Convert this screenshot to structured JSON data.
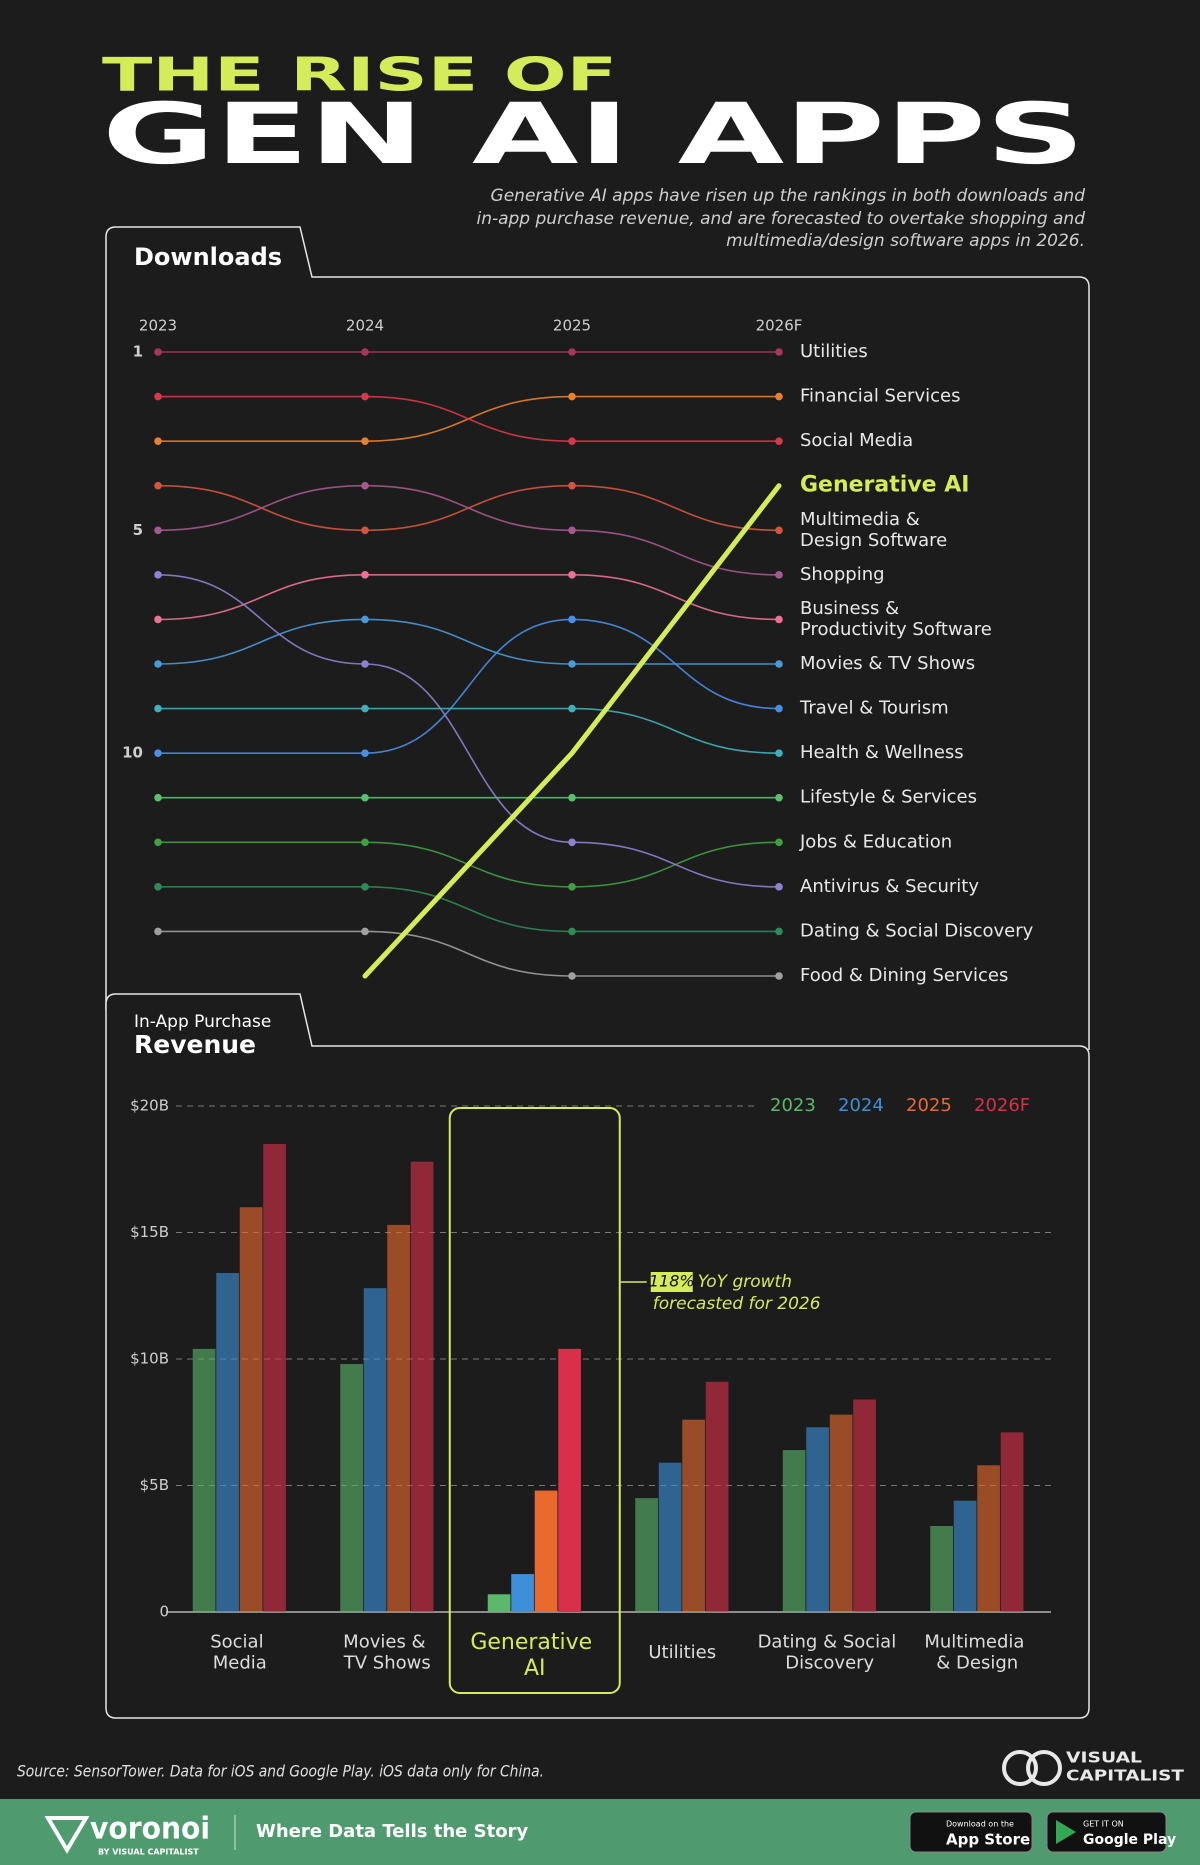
{
  "header": {
    "kicker": "THE RISE OF",
    "title": "GEN AI APPS",
    "subtitle": [
      "Generative AI apps have risen up the rankings in both downloads and",
      "in-app purchase revenue, and are forecasted to overtake shopping and",
      "multimedia/design software apps in 2026."
    ]
  },
  "chart_data": [
    {
      "type": "line",
      "title": "Downloads",
      "x": [
        "2023",
        "2024",
        "2025",
        "2026F"
      ],
      "ylim": [
        15,
        1
      ],
      "yticks": [
        1,
        5,
        10
      ],
      "highlight": "Generative AI",
      "series": [
        {
          "name": "Utilities",
          "color": "#a8365a",
          "values": [
            1,
            1,
            1,
            1
          ]
        },
        {
          "name": "Financial Services",
          "color": "#e8802e",
          "values": [
            3,
            3,
            2,
            2
          ]
        },
        {
          "name": "Social Media",
          "color": "#d8384a",
          "values": [
            2,
            2,
            3,
            3
          ]
        },
        {
          "name": "Generative AI",
          "color": "#d4ec5a",
          "values": [
            null,
            15,
            10,
            4
          ]
        },
        {
          "name": "Multimedia & Design Software",
          "color": "#d4553e",
          "values": [
            4,
            5,
            4,
            5
          ]
        },
        {
          "name": "Shopping",
          "color": "#a45a8c",
          "values": [
            5,
            4,
            5,
            6
          ]
        },
        {
          "name": "Business & Productivity Software",
          "color": "#ea7294",
          "values": [
            7,
            6,
            6,
            7
          ]
        },
        {
          "name": "Movies & TV Shows",
          "color": "#4a9ad8",
          "values": [
            8,
            7,
            8,
            8
          ]
        },
        {
          "name": "Travel & Tourism",
          "color": "#4a8ee8",
          "values": [
            10,
            10,
            7,
            9
          ]
        },
        {
          "name": "Health & Wellness",
          "color": "#40b0b8",
          "values": [
            9,
            9,
            9,
            10
          ]
        },
        {
          "name": "Lifestyle & Services",
          "color": "#58c070",
          "values": [
            11,
            11,
            11,
            11
          ]
        },
        {
          "name": "Jobs & Education",
          "color": "#40a040",
          "values": [
            12,
            12,
            13,
            12
          ]
        },
        {
          "name": "Antivirus & Security",
          "color": "#9080d0",
          "values": [
            6,
            8,
            12,
            13
          ]
        },
        {
          "name": "Dating & Social Discovery",
          "color": "#2e8a58",
          "values": [
            13,
            13,
            14,
            14
          ]
        },
        {
          "name": "Food & Dining Services",
          "color": "#a0a0a0",
          "values": [
            14,
            14,
            15,
            15
          ]
        }
      ]
    },
    {
      "type": "bar",
      "subtitle": "In-App Purchase",
      "title": "Revenue",
      "categories": [
        "Social Media",
        "Movies & TV Shows",
        "Generative AI",
        "Utilities",
        "Dating & Social Discovery",
        "Multimedia & Design"
      ],
      "ylim": [
        0,
        20
      ],
      "yticks": [
        0,
        {
          "value": 5,
          "label": "$5B"
        },
        {
          "value": 10,
          "label": "$10B"
        },
        {
          "value": 15,
          "label": "$15B"
        },
        {
          "value": 20,
          "label": "$20B"
        }
      ],
      "grid": true,
      "legend": "top-right",
      "highlight": "Generative AI",
      "annotation": {
        "highlight": "118%",
        "lines": [
          "YoY growth",
          "forecasted for 2026"
        ]
      },
      "series": [
        {
          "name": "2023",
          "color": "#5cb86a",
          "values": [
            10.4,
            9.8,
            0.7,
            4.5,
            6.4,
            3.4
          ]
        },
        {
          "name": "2024",
          "color": "#3c8fd8",
          "values": [
            13.4,
            12.8,
            1.5,
            5.9,
            7.3,
            4.4
          ]
        },
        {
          "name": "2025",
          "color": "#e86a2e",
          "values": [
            16.0,
            15.3,
            4.8,
            7.6,
            7.8,
            5.8
          ]
        },
        {
          "name": "2026F",
          "color": "#d8304a",
          "values": [
            18.5,
            17.8,
            10.4,
            9.1,
            8.4,
            7.1
          ]
        }
      ]
    }
  ],
  "source": "Source: SensorTower.  Data for iOS and Google Play. iOS data only for China.",
  "brand": [
    "VISUAL",
    "CAPITALIST"
  ],
  "footer": {
    "logo": "voronoi",
    "logo_sub": "BY VISUAL CAPITALIST",
    "tagline": "Where Data Tells the Story",
    "app_store": [
      "Download on the",
      "App Store"
    ],
    "google_play": [
      "GET IT ON",
      "Google Play"
    ]
  }
}
